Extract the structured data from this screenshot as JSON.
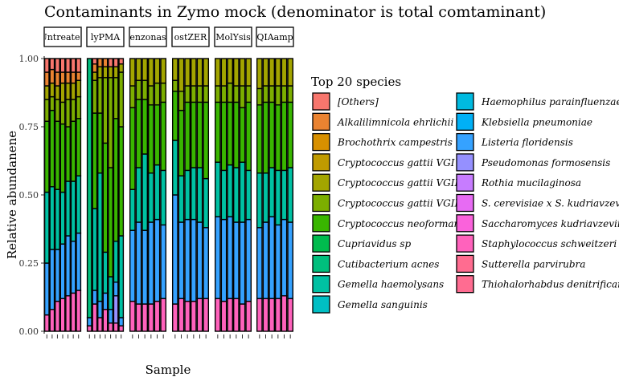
{
  "chart_data": {
    "type": "bar",
    "subtype": "stacked-100-faceted",
    "title": "Contaminants in Zymo mock (denominator is total comtaminant)",
    "xlabel": "Sample",
    "ylabel": "Relative abundanene",
    "ylim": [
      0,
      1
    ],
    "yticks": [
      "0.00",
      "0.25",
      "0.50",
      "0.75",
      "1.00"
    ],
    "ytick_values": [
      0,
      0.25,
      0.5,
      0.75,
      1.0
    ],
    "grid": false,
    "legend": {
      "title": "Top 20 species",
      "placement": "right",
      "columns": 2,
      "entries": [
        {
          "name": "[Others]",
          "color": "#F8766D"
        },
        {
          "name": "Alkalilimnicola ehrlichii",
          "color": "#EA8331"
        },
        {
          "name": "Brochothrix campestris",
          "color": "#D89000"
        },
        {
          "name": "Cryptococcus gattii VGI",
          "color": "#C09B00"
        },
        {
          "name": "Cryptococcus gattii VGII",
          "color": "#A3A500"
        },
        {
          "name": "Cryptococcus gattii VGIII",
          "color": "#7CAE00"
        },
        {
          "name": "Cryptococcus neoformans",
          "color": "#39B600"
        },
        {
          "name": "Cupriavidus sp",
          "color": "#00BB4E"
        },
        {
          "name": "Cutibacterium acnes",
          "color": "#00BF7D"
        },
        {
          "name": "Gemella haemolysans",
          "color": "#00C1A3"
        },
        {
          "name": "Gemella sanguinis",
          "color": "#00BFC4"
        },
        {
          "name": "Haemophilus parainfluenzae",
          "color": "#00BAE0"
        },
        {
          "name": "Klebsiella pneumoniae",
          "color": "#00B0F6"
        },
        {
          "name": "Listeria floridensis",
          "color": "#35A2FF"
        },
        {
          "name": "Pseudomonas formosensis",
          "color": "#9590FF"
        },
        {
          "name": "Rothia mucilaginosa",
          "color": "#C77CFF"
        },
        {
          "name": "S. cerevisiae x S. kudriavzevii",
          "color": "#E76BF3"
        },
        {
          "name": "Saccharomyces kudriavzevii",
          "color": "#FA62DB"
        },
        {
          "name": "Staphylococcus schweitzeri",
          "color": "#FF62BC"
        },
        {
          "name": "Sutterella parvirubra",
          "color": "#FF6C90"
        },
        {
          "name": "Thiohalorhabdus denitrificans",
          "color": "#FF6C91"
        }
      ]
    },
    "facets": [
      {
        "label": "Untreated",
        "bars": [
          {
            "Staphylococcus schweitzeri": 0.06,
            "Listeria floridensis": 0.19,
            "Gemella haemolysans": 0.26,
            "Cryptococcus neoformans": 0.26,
            "Cryptococcus gattii VGIII": 0.08,
            "Cryptococcus gattii VGII": 0.05,
            "Alkalilimnicola ehrlichii": 0.05,
            "[Others]": 0.05
          },
          {
            "Staphylococcus schweitzeri": 0.08,
            "Listeria floridensis": 0.22,
            "Gemella haemolysans": 0.23,
            "Cryptococcus neoformans": 0.28,
            "Cryptococcus gattii VGIII": 0.05,
            "Cryptococcus gattii VGII": 0.05,
            "Alkalilimnicola ehrlichii": 0.05,
            "[Others]": 0.04
          },
          {
            "Staphylococcus schweitzeri": 0.11,
            "Listeria floridensis": 0.19,
            "Gemella haemolysans": 0.22,
            "Cryptococcus neoformans": 0.25,
            "Cryptococcus gattii VGIII": 0.08,
            "Cryptococcus gattii VGII": 0.05,
            "Alkalilimnicola ehrlichii": 0.05,
            "[Others]": 0.05
          },
          {
            "Staphylococcus schweitzeri": 0.12,
            "Listeria floridensis": 0.2,
            "Gemella haemolysans": 0.19,
            "Cryptococcus neoformans": 0.25,
            "Cryptococcus gattii VGIII": 0.08,
            "Cryptococcus gattii VGII": 0.07,
            "Alkalilimnicola ehrlichii": 0.04,
            "[Others]": 0.05
          },
          {
            "Staphylococcus schweitzeri": 0.13,
            "Listeria floridensis": 0.22,
            "Gemella haemolysans": 0.2,
            "Cryptococcus neoformans": 0.2,
            "Cryptococcus gattii VGIII": 0.1,
            "Cryptococcus gattii VGII": 0.06,
            "Alkalilimnicola ehrlichii": 0.04,
            "[Others]": 0.05
          },
          {
            "Staphylococcus schweitzeri": 0.14,
            "Listeria floridensis": 0.19,
            "Gemella haemolysans": 0.22,
            "Cryptococcus neoformans": 0.22,
            "Cryptococcus gattii VGIII": 0.08,
            "Cryptococcus gattii VGII": 0.06,
            "Alkalilimnicola ehrlichii": 0.04,
            "[Others]": 0.05
          },
          {
            "Staphylococcus schweitzeri": 0.15,
            "Listeria floridensis": 0.21,
            "Gemella haemolysans": 0.21,
            "Cryptococcus neoformans": 0.21,
            "Cryptococcus gattii VGIII": 0.08,
            "Cryptococcus gattii VGII": 0.06,
            "Alkalilimnicola ehrlichii": 0.03,
            "[Others]": 0.05
          }
        ]
      },
      {
        "label": "lyPMA",
        "bars": [
          {
            "Staphylococcus schweitzeri": 0.02,
            "Listeria floridensis": 0.03,
            "Cutibacterium acnes": 0.95
          },
          {
            "Staphylococcus schweitzeri": 0.1,
            "Listeria floridensis": 0.05,
            "Gemella haemolysans": 0.3,
            "Cryptococcus neoformans": 0.35,
            "Cryptococcus gattii VGIII": 0.12,
            "Cryptococcus gattii VGII": 0.03,
            "Alkalilimnicola ehrlichii": 0.03,
            "[Others]": 0.02
          },
          {
            "Staphylococcus schweitzeri": 0.05,
            "Listeria floridensis": 0.06,
            "Gemella haemolysans": 0.47,
            "Cryptococcus neoformans": 0.22,
            "Cryptococcus gattii VGIII": 0.13,
            "Cryptococcus gattii VGII": 0.04,
            "Alkalilimnicola ehrlichii": 0.03
          },
          {
            "Staphylococcus schweitzeri": 0.08,
            "Listeria floridensis": 0.06,
            "Gemella haemolysans": 0.15,
            "Cryptococcus neoformans": 0.4,
            "Cryptococcus gattii VGIII": 0.24,
            "Cryptococcus gattii VGII": 0.04,
            "Alkalilimnicola ehrlichii": 0.03
          },
          {
            "Staphylococcus schweitzeri": 0.03,
            "Listeria floridensis": 0.05,
            "Gemella haemolysans": 0.12,
            "Cryptococcus neoformans": 0.4,
            "Cryptococcus gattii VGIII": 0.33,
            "Cryptococcus gattii VGII": 0.04,
            "[Others]": 0.03
          },
          {
            "Staphylococcus schweitzeri": 0.03,
            "Pseudomonas formosensis": 0.1,
            "Listeria floridensis": 0.05,
            "Gemella haemolysans": 0.15,
            "Cryptococcus neoformans": 0.45,
            "Cryptococcus gattii VGIII": 0.15,
            "Cryptococcus gattii VGII": 0.04,
            "[Others]": 0.03
          },
          {
            "Staphylococcus schweitzeri": 0.02,
            "Listeria floridensis": 0.03,
            "Gemella haemolysans": 0.3,
            "Cryptococcus neoformans": 0.4,
            "Cryptococcus gattii VGIII": 0.2,
            "Cryptococcus gattii VGII": 0.03,
            "[Others]": 0.02
          }
        ]
      },
      {
        "label": "enzonas",
        "bars": [
          {
            "Staphylococcus schweitzeri": 0.11,
            "Listeria floridensis": 0.26,
            "Gemella haemolysans": 0.15,
            "Cryptococcus neoformans": 0.3,
            "Cryptococcus gattii VGIII": 0.08,
            "Cryptococcus gattii VGII": 0.1
          },
          {
            "Staphylococcus schweitzeri": 0.1,
            "Listeria floridensis": 0.3,
            "Gemella haemolysans": 0.2,
            "Cryptococcus neoformans": 0.25,
            "Cryptococcus gattii VGIII": 0.07,
            "Cryptococcus gattii VGII": 0.08
          },
          {
            "Staphylococcus schweitzeri": 0.1,
            "Listeria floridensis": 0.27,
            "Gemella haemolysans": 0.28,
            "Cryptococcus neoformans": 0.2,
            "Cryptococcus gattii VGIII": 0.07,
            "Cryptococcus gattii VGII": 0.08
          },
          {
            "Staphylococcus schweitzeri": 0.1,
            "Listeria floridensis": 0.3,
            "Gemella haemolysans": 0.18,
            "Cryptococcus neoformans": 0.25,
            "Cryptococcus gattii VGIII": 0.07,
            "Cryptococcus gattii VGII": 0.1
          },
          {
            "Staphylococcus schweitzeri": 0.11,
            "Listeria floridensis": 0.3,
            "Gemella haemolysans": 0.2,
            "Cryptococcus neoformans": 0.22,
            "Cryptococcus gattii VGIII": 0.08,
            "Cryptococcus gattii VGII": 0.09
          },
          {
            "Staphylococcus schweitzeri": 0.12,
            "Listeria floridensis": 0.27,
            "Gemella haemolysans": 0.2,
            "Cryptococcus neoformans": 0.25,
            "Cryptococcus gattii VGIII": 0.07,
            "Cryptococcus gattii VGII": 0.09
          }
        ]
      },
      {
        "label": "ostZER",
        "bars": [
          {
            "Staphylococcus schweitzeri": 0.1,
            "Listeria floridensis": 0.4,
            "Gemella haemolysans": 0.2,
            "Cryptococcus neoformans": 0.18,
            "Cryptococcus gattii VGIII": 0.04,
            "Cryptococcus gattii VGII": 0.08
          },
          {
            "Staphylococcus schweitzeri": 0.12,
            "Listeria floridensis": 0.28,
            "Gemella haemolysans": 0.17,
            "Cryptococcus neoformans": 0.24,
            "Cryptococcus gattii VGIII": 0.07,
            "Cryptococcus gattii VGII": 0.12
          },
          {
            "Staphylococcus schweitzeri": 0.11,
            "Listeria floridensis": 0.3,
            "Gemella haemolysans": 0.18,
            "Cryptococcus neoformans": 0.25,
            "Cryptococcus gattii VGIII": 0.06,
            "Cryptococcus gattii VGII": 0.1
          },
          {
            "Staphylococcus schweitzeri": 0.11,
            "Listeria floridensis": 0.3,
            "Gemella haemolysans": 0.19,
            "Cryptococcus neoformans": 0.24,
            "Cryptococcus gattii VGIII": 0.06,
            "Cryptococcus gattii VGII": 0.1
          },
          {
            "Staphylococcus schweitzeri": 0.12,
            "Listeria floridensis": 0.28,
            "Gemella haemolysans": 0.2,
            "Cryptococcus neoformans": 0.24,
            "Cryptococcus gattii VGIII": 0.06,
            "Cryptococcus gattii VGII": 0.1
          },
          {
            "Staphylococcus schweitzeri": 0.12,
            "Listeria floridensis": 0.26,
            "Gemella haemolysans": 0.18,
            "Cryptococcus neoformans": 0.28,
            "Cryptococcus gattii VGIII": 0.06,
            "Cryptococcus gattii VGII": 0.1
          }
        ]
      },
      {
        "label": "MolYsis",
        "bars": [
          {
            "Staphylococcus schweitzeri": 0.12,
            "Listeria floridensis": 0.3,
            "Gemella haemolysans": 0.2,
            "Cryptococcus neoformans": 0.22,
            "Cryptococcus gattii VGIII": 0.06,
            "Cryptococcus gattii VGII": 0.1
          },
          {
            "Staphylococcus schweitzeri": 0.11,
            "Listeria floridensis": 0.3,
            "Gemella haemolysans": 0.18,
            "Cryptococcus neoformans": 0.25,
            "Cryptococcus gattii VGIII": 0.06,
            "Cryptococcus gattii VGII": 0.1
          },
          {
            "Staphylococcus schweitzeri": 0.12,
            "Listeria floridensis": 0.3,
            "Gemella haemolysans": 0.19,
            "Cryptococcus neoformans": 0.23,
            "Cryptococcus gattii VGIII": 0.07,
            "Cryptococcus gattii VGII": 0.09
          },
          {
            "Staphylococcus schweitzeri": 0.12,
            "Listeria floridensis": 0.28,
            "Gemella haemolysans": 0.2,
            "Cryptococcus neoformans": 0.24,
            "Cryptococcus gattii VGIII": 0.06,
            "Cryptococcus gattii VGII": 0.1
          },
          {
            "Staphylococcus schweitzeri": 0.1,
            "Listeria floridensis": 0.3,
            "Gemella haemolysans": 0.22,
            "Cryptococcus neoformans": 0.2,
            "Cryptococcus gattii VGIII": 0.08,
            "Cryptococcus gattii VGII": 0.1
          },
          {
            "Staphylococcus schweitzeri": 0.11,
            "Listeria floridensis": 0.3,
            "Gemella haemolysans": 0.18,
            "Cryptococcus neoformans": 0.25,
            "Cryptococcus gattii VGIII": 0.06,
            "Cryptococcus gattii VGII": 0.1
          }
        ]
      },
      {
        "label": "QIAamp",
        "bars": [
          {
            "Staphylococcus schweitzeri": 0.12,
            "Listeria floridensis": 0.26,
            "Gemella haemolysans": 0.2,
            "Cryptococcus neoformans": 0.25,
            "Cryptococcus gattii VGIII": 0.06,
            "Cryptococcus gattii VGII": 0.11
          },
          {
            "Staphylococcus schweitzeri": 0.12,
            "Listeria floridensis": 0.28,
            "Gemella haemolysans": 0.18,
            "Cryptococcus neoformans": 0.26,
            "Cryptococcus gattii VGIII": 0.06,
            "Cryptococcus gattii VGII": 0.1
          },
          {
            "Staphylococcus schweitzeri": 0.12,
            "Listeria floridensis": 0.3,
            "Gemella haemolysans": 0.18,
            "Cryptococcus neoformans": 0.24,
            "Cryptococcus gattii VGIII": 0.06,
            "Cryptococcus gattii VGII": 0.1
          },
          {
            "Staphylococcus schweitzeri": 0.12,
            "Listeria floridensis": 0.27,
            "Gemella haemolysans": 0.2,
            "Cryptococcus neoformans": 0.24,
            "Cryptococcus gattii VGIII": 0.07,
            "Cryptococcus gattii VGII": 0.1
          },
          {
            "Staphylococcus schweitzeri": 0.13,
            "Listeria floridensis": 0.28,
            "Gemella haemolysans": 0.18,
            "Cryptococcus neoformans": 0.25,
            "Cryptococcus gattii VGIII": 0.06,
            "Cryptococcus gattii VGII": 0.1
          },
          {
            "Staphylococcus schweitzeri": 0.12,
            "Listeria floridensis": 0.28,
            "Gemella haemolysans": 0.2,
            "Cryptococcus neoformans": 0.24,
            "Cryptococcus gattii VGIII": 0.06,
            "Cryptococcus gattii VGII": 0.1
          }
        ]
      }
    ]
  }
}
